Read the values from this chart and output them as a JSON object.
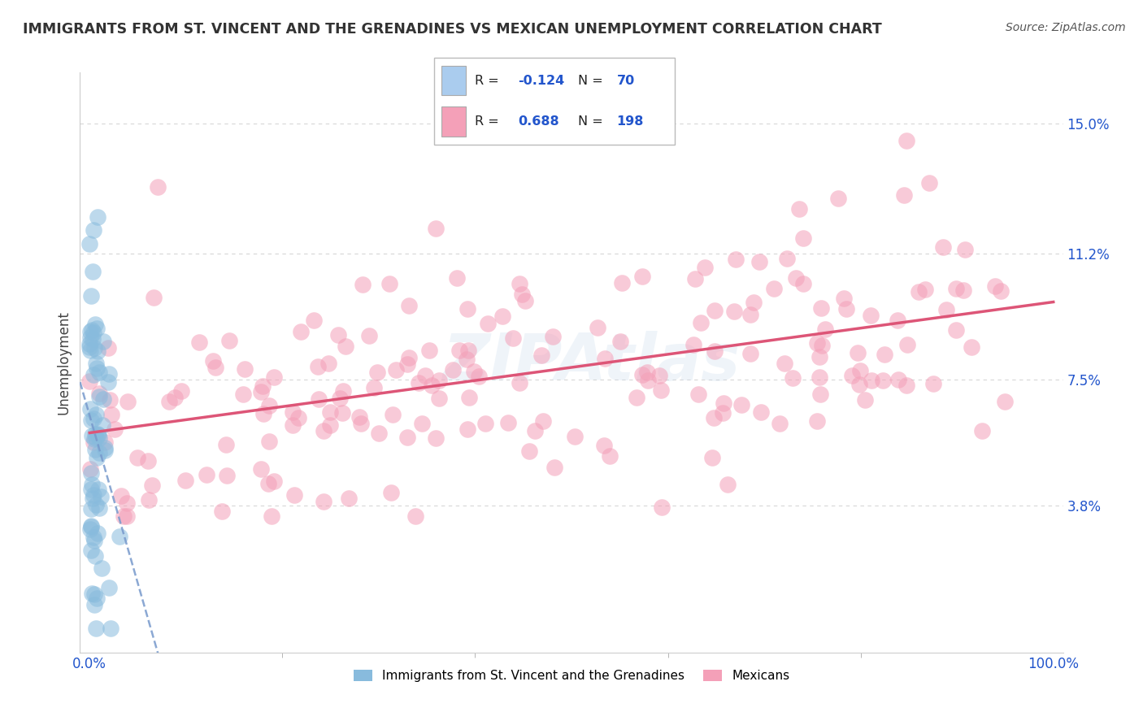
{
  "title": "IMMIGRANTS FROM ST. VINCENT AND THE GRENADINES VS MEXICAN UNEMPLOYMENT CORRELATION CHART",
  "source": "Source: ZipAtlas.com",
  "ylabel": "Unemployment",
  "xlim": [
    -1.0,
    101.0
  ],
  "ylim": [
    -0.5,
    16.5
  ],
  "yticks": [
    3.8,
    7.5,
    11.2,
    15.0
  ],
  "ytick_labels": [
    "3.8%",
    "7.5%",
    "11.2%",
    "15.0%"
  ],
  "xticks": [
    0,
    100
  ],
  "xtick_labels": [
    "0.0%",
    "100.0%"
  ],
  "legend_label_blue": "Immigrants from St. Vincent and the Grenadines",
  "legend_label_pink": "Mexicans",
  "watermark": "ZIPAtlas",
  "blue_R": -0.124,
  "blue_N": 70,
  "pink_R": 0.688,
  "pink_N": 198,
  "background_color": "#ffffff",
  "grid_color": "#cccccc",
  "title_color": "#333333",
  "source_color": "#555555",
  "blue_dot_color": "#88bbdd",
  "pink_dot_color": "#f4a0b8",
  "blue_line_color": "#7799cc",
  "pink_line_color": "#dd5577",
  "value_color": "#2255cc",
  "legend_blue_color": "#aaccee",
  "legend_pink_color": "#f4a0b8"
}
